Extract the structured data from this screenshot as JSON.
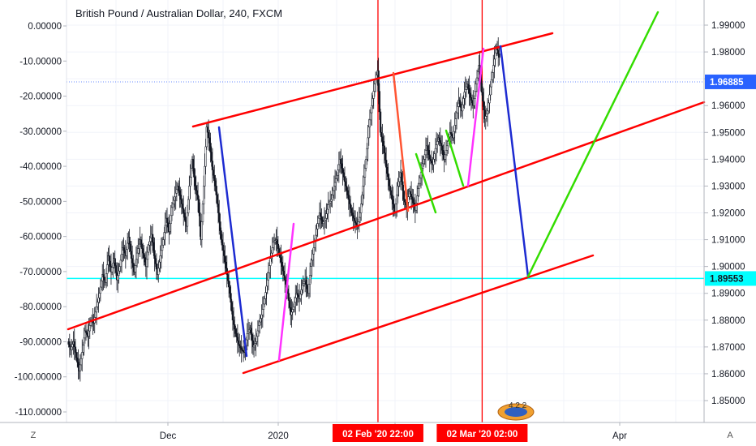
{
  "chart_data": {
    "type": "line",
    "title": "British Pound / Australian Dollar, 240, FXCM",
    "left_axis": {
      "ticks": [
        "0.00000",
        "-10.00000",
        "-20.00000",
        "-30.00000",
        "-40.00000",
        "-50.00000",
        "-60.00000",
        "-70.00000",
        "-80.00000",
        "-90.00000",
        "-100.00000",
        "-110.00000"
      ],
      "values": [
        0,
        -10,
        -20,
        -30,
        -40,
        -50,
        -60,
        -70,
        -80,
        -90,
        -100,
        -110
      ]
    },
    "right_axis": {
      "ticks": [
        "1.99000",
        "1.98000",
        "1.97000",
        "1.96000",
        "1.95000",
        "1.94000",
        "1.93000",
        "1.92000",
        "1.91000",
        "1.90000",
        "1.89000",
        "1.88000",
        "1.87000",
        "1.86000",
        "1.85000"
      ],
      "values": [
        1.99,
        1.98,
        1.97,
        1.96,
        1.95,
        1.94,
        1.93,
        1.92,
        1.91,
        1.9,
        1.89,
        1.88,
        1.87,
        1.86,
        1.85
      ],
      "ylim": [
        1.843,
        1.997
      ]
    },
    "x_ticks": [
      "Dec",
      "2020",
      "Feb",
      "Apr"
    ],
    "price_labels": [
      {
        "value": 1.96885,
        "text": "1.96885",
        "color": "#2962ff"
      },
      {
        "value": 1.89553,
        "text": "1.89553",
        "color": "#00ffff"
      }
    ],
    "time_flags": [
      {
        "text": "02 Feb '20   22:00",
        "color": "#ff0000"
      },
      {
        "text": "02 Mar '20   02:00",
        "color": "#ff0000"
      }
    ],
    "corner_labels": {
      "left": "Z",
      "right": "A"
    },
    "series_path": [
      [
        0,
        1.872
      ],
      [
        3,
        1.869
      ],
      [
        6,
        1.872
      ],
      [
        9,
        1.866
      ],
      [
        12,
        1.861
      ],
      [
        15,
        1.868
      ],
      [
        18,
        1.876
      ],
      [
        21,
        1.874
      ],
      [
        24,
        1.88
      ],
      [
        27,
        1.879
      ],
      [
        30,
        1.885
      ],
      [
        33,
        1.89
      ],
      [
        36,
        1.897
      ],
      [
        39,
        1.894
      ],
      [
        42,
        1.904
      ],
      [
        45,
        1.898
      ],
      [
        48,
        1.903
      ],
      [
        51,
        1.895
      ],
      [
        54,
        1.9
      ],
      [
        57,
        1.907
      ],
      [
        60,
        1.904
      ],
      [
        63,
        1.911
      ],
      [
        66,
        1.903
      ],
      [
        69,
        1.898
      ],
      [
        72,
        1.905
      ],
      [
        75,
        1.91
      ],
      [
        78,
        1.905
      ],
      [
        81,
        1.9
      ],
      [
        84,
        1.908
      ],
      [
        87,
        1.912
      ],
      [
        90,
        1.903
      ],
      [
        93,
        1.897
      ],
      [
        96,
        1.904
      ],
      [
        99,
        1.91
      ],
      [
        102,
        1.918
      ],
      [
        105,
        1.913
      ],
      [
        108,
        1.922
      ],
      [
        111,
        1.926
      ],
      [
        114,
        1.93
      ],
      [
        117,
        1.925
      ],
      [
        120,
        1.92
      ],
      [
        123,
        1.915
      ],
      [
        126,
        1.93
      ],
      [
        129,
        1.94
      ],
      [
        132,
        1.93
      ],
      [
        135,
        1.925
      ],
      [
        138,
        1.91
      ],
      [
        141,
        1.93
      ],
      [
        144,
        1.952
      ],
      [
        147,
        1.946
      ],
      [
        150,
        1.936
      ],
      [
        153,
        1.93
      ],
      [
        156,
        1.92
      ],
      [
        159,
        1.91
      ],
      [
        162,
        1.904
      ],
      [
        165,
        1.897
      ],
      [
        168,
        1.89
      ],
      [
        171,
        1.88
      ],
      [
        174,
        1.875
      ],
      [
        177,
        1.871
      ],
      [
        180,
        1.869
      ],
      [
        183,
        1.868
      ],
      [
        186,
        1.875
      ],
      [
        189,
        1.877
      ],
      [
        192,
        1.87
      ],
      [
        195,
        1.872
      ],
      [
        198,
        1.878
      ],
      [
        201,
        1.882
      ],
      [
        204,
        1.888
      ],
      [
        207,
        1.895
      ],
      [
        210,
        1.903
      ],
      [
        213,
        1.909
      ],
      [
        216,
        1.91
      ],
      [
        219,
        1.905
      ],
      [
        222,
        1.9
      ],
      [
        225,
        1.895
      ],
      [
        228,
        1.89
      ],
      [
        231,
        1.882
      ],
      [
        234,
        1.885
      ],
      [
        237,
        1.89
      ],
      [
        240,
        1.888
      ],
      [
        243,
        1.893
      ],
      [
        246,
        1.895
      ],
      [
        249,
        1.89
      ],
      [
        252,
        1.9
      ],
      [
        255,
        1.907
      ],
      [
        258,
        1.914
      ],
      [
        261,
        1.92
      ],
      [
        264,
        1.916
      ],
      [
        267,
        1.918
      ],
      [
        270,
        1.923
      ],
      [
        273,
        1.925
      ],
      [
        276,
        1.93
      ],
      [
        279,
        1.934
      ],
      [
        282,
        1.94
      ],
      [
        285,
        1.935
      ],
      [
        288,
        1.93
      ],
      [
        291,
        1.925
      ],
      [
        294,
        1.92
      ],
      [
        297,
        1.917
      ],
      [
        300,
        1.915
      ],
      [
        303,
        1.92
      ],
      [
        306,
        1.93
      ],
      [
        309,
        1.94
      ],
      [
        312,
        1.952
      ],
      [
        315,
        1.96
      ],
      [
        318,
        1.968
      ],
      [
        321,
        1.973
      ],
      [
        324,
        1.95
      ],
      [
        327,
        1.945
      ],
      [
        330,
        1.937
      ],
      [
        333,
        1.93
      ],
      [
        336,
        1.925
      ],
      [
        339,
        1.92
      ],
      [
        342,
        1.93
      ],
      [
        345,
        1.935
      ],
      [
        348,
        1.925
      ],
      [
        351,
        1.922
      ],
      [
        354,
        1.928
      ],
      [
        357,
        1.925
      ],
      [
        360,
        1.921
      ],
      [
        363,
        1.929
      ],
      [
        366,
        1.935
      ],
      [
        369,
        1.94
      ],
      [
        372,
        1.945
      ],
      [
        375,
        1.94
      ],
      [
        378,
        1.938
      ],
      [
        381,
        1.944
      ],
      [
        384,
        1.948
      ],
      [
        387,
        1.945
      ],
      [
        390,
        1.94
      ],
      [
        393,
        1.945
      ],
      [
        396,
        1.95
      ],
      [
        399,
        1.948
      ],
      [
        402,
        1.955
      ],
      [
        405,
        1.962
      ],
      [
        408,
        1.958
      ],
      [
        411,
        1.965
      ],
      [
        414,
        1.968
      ],
      [
        417,
        1.963
      ],
      [
        420,
        1.96
      ],
      [
        423,
        1.968
      ],
      [
        426,
        1.975
      ],
      [
        429,
        1.965
      ],
      [
        432,
        1.955
      ],
      [
        435,
        1.958
      ],
      [
        438,
        1.967
      ],
      [
        441,
        1.975
      ],
      [
        444,
        1.982
      ],
      [
        447,
        1.978
      ]
    ],
    "drawings": {
      "vertical_lines": [
        {
          "x_frac": 0.4885,
          "color": "#ff0000"
        },
        {
          "x_frac": 0.6519,
          "color": "#ff0000"
        }
      ],
      "horizontal_lines": [
        {
          "value": 1.96885,
          "color": "#6b8cff",
          "style": "dotted"
        },
        {
          "value": 1.89553,
          "color": "#00ffff",
          "style": "solid"
        }
      ]
    }
  }
}
